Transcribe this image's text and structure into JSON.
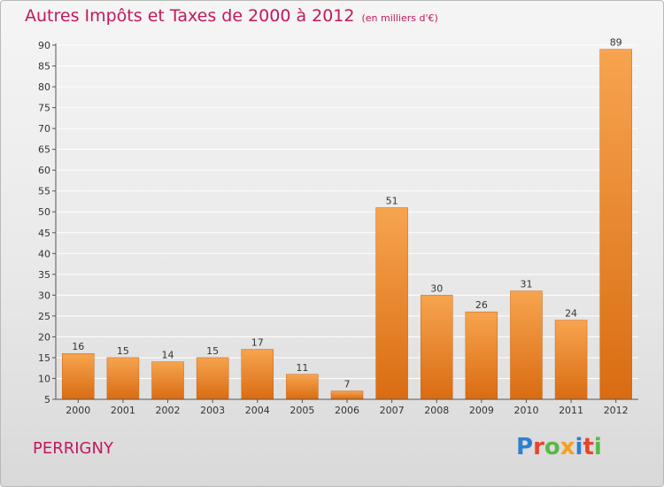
{
  "chart": {
    "title": "Autres Impôts et Taxes de 2000 à 2012",
    "unit_note": "(en milliers d'€)",
    "place": "PERRIGNY"
  },
  "logo": {
    "text": "Proxiti"
  },
  "colors": {
    "title": "#c2185b",
    "bar_light": "#f7a44f",
    "bar_dark": "#d96c12",
    "grid": "#ffffff",
    "axis": "#555555"
  },
  "chart_data": {
    "type": "bar",
    "categories": [
      "2000",
      "2001",
      "2002",
      "2003",
      "2004",
      "2005",
      "2006",
      "2007",
      "2008",
      "2009",
      "2010",
      "2011",
      "2012"
    ],
    "values": [
      16,
      15,
      14,
      15,
      17,
      11,
      7,
      51,
      30,
      26,
      31,
      24,
      89
    ],
    "ylim": [
      5,
      90
    ],
    "yticks": [
      5,
      10,
      15,
      20,
      25,
      30,
      35,
      40,
      45,
      50,
      55,
      60,
      65,
      70,
      75,
      80,
      85,
      90
    ],
    "grid": true,
    "xlabel": "",
    "ylabel": ""
  }
}
